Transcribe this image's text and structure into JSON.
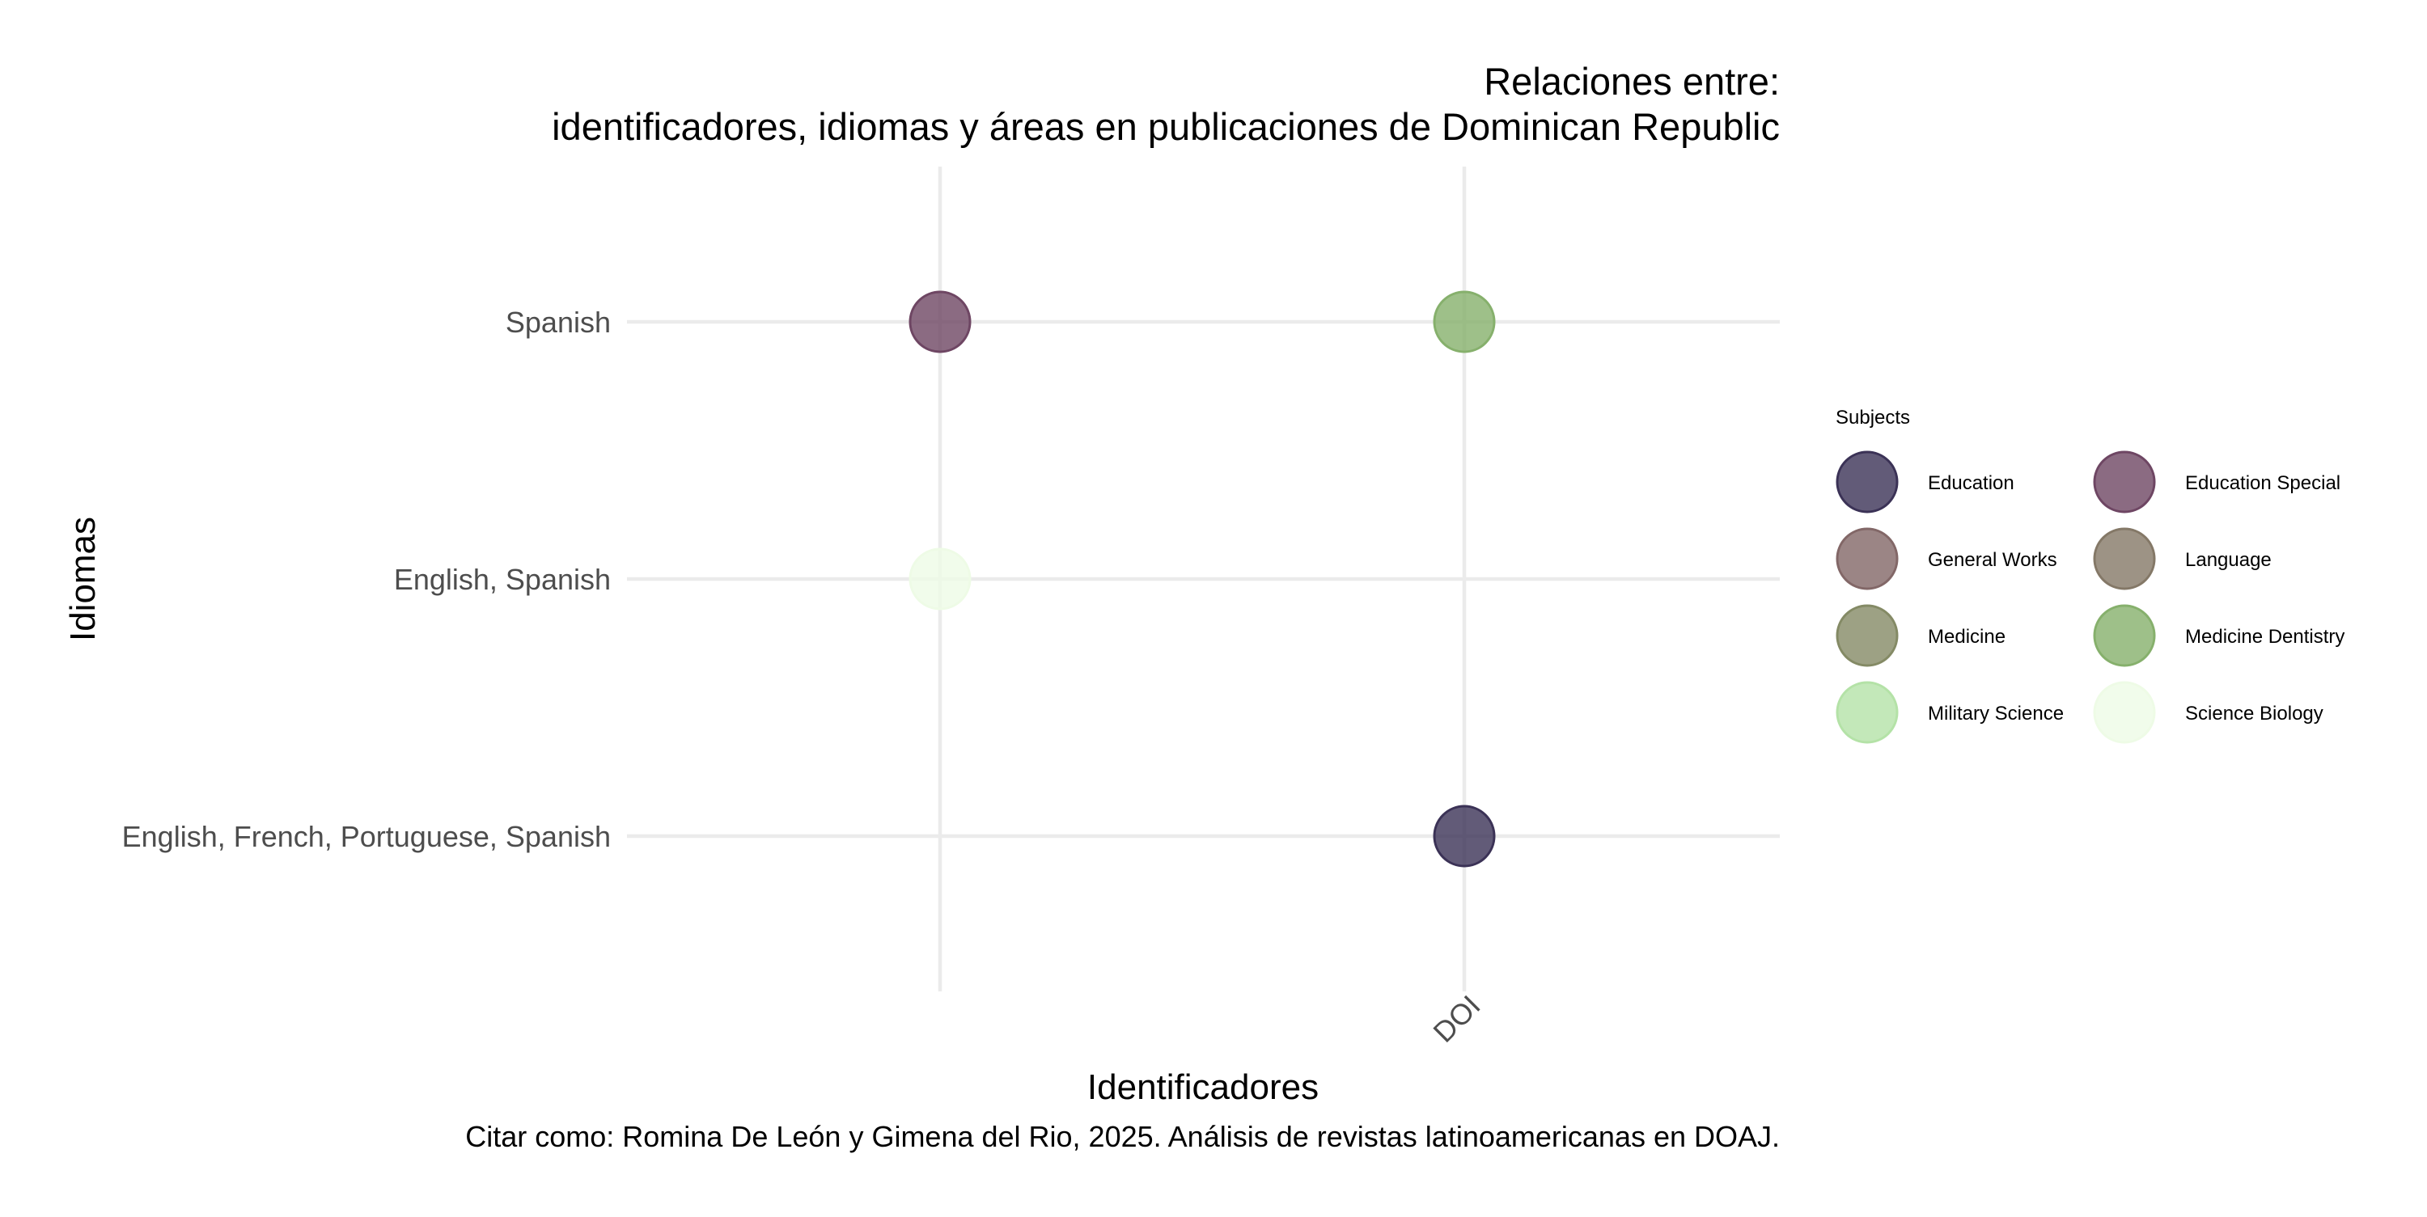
{
  "chart_data": {
    "type": "scatter",
    "title": "Relaciones entre:",
    "subtitle": "identificadores, idiomas y áreas en publicaciones de Dominican Republic",
    "xlabel": "Identificadores",
    "ylabel": "Idiomas",
    "caption": "Citar como: Romina De León y Gimena del Rio, 2025. Análisis de revistas latinoamericanas en DOAJ.",
    "x_categories": [
      "",
      "DOI"
    ],
    "y_categories": [
      "English, French, Portuguese, Spanish",
      "English, Spanish",
      "Spanish"
    ],
    "grid": true,
    "legend": {
      "title": "Subjects",
      "position": "right",
      "columns": 2,
      "items": [
        {
          "label": "Education",
          "color": "#3b3256"
        },
        {
          "label": "Education Special",
          "color": "#6e4663"
        },
        {
          "label": "General Works",
          "color": "#826767"
        },
        {
          "label": "Language",
          "color": "#847867"
        },
        {
          "label": "Medicine",
          "color": "#848a65"
        },
        {
          "label": "Medicine Dentistry",
          "color": "#86b06c"
        },
        {
          "label": "Military Science",
          "color": "#b4e2a7"
        },
        {
          "label": "Science Biology",
          "color": "#eefbe6"
        }
      ]
    },
    "points": [
      {
        "x": "",
        "y": "Spanish",
        "subject": "Education Special"
      },
      {
        "x": "DOI",
        "y": "Spanish",
        "subject": "Medicine Dentistry"
      },
      {
        "x": "",
        "y": "English, Spanish",
        "subject": "Science Biology"
      },
      {
        "x": "DOI",
        "y": "English, French, Portuguese, Spanish",
        "subject": "Education"
      }
    ]
  }
}
